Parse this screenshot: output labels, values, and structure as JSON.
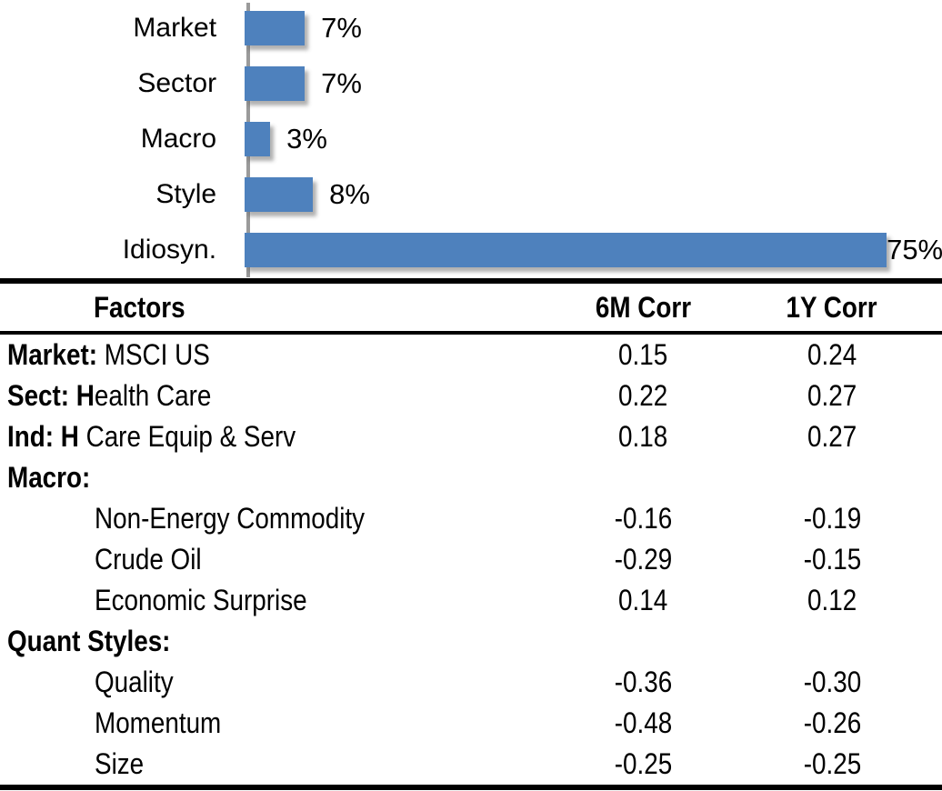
{
  "chart_data": [
    {
      "type": "bar",
      "orientation": "horizontal",
      "title": "",
      "xlabel": "",
      "ylabel": "",
      "categories": [
        "Market",
        "Sector",
        "Macro",
        "Style",
        "Idiosyn."
      ],
      "values": [
        7,
        7,
        3,
        8,
        75
      ],
      "unit": "percent",
      "data_labels": [
        "7%",
        "7%",
        "3%",
        "8%",
        "75%"
      ],
      "xlim": [
        0,
        80
      ],
      "grid": false,
      "legend": "none",
      "bar_color": "#4e81bd",
      "axis_color": "#9a9a9a",
      "label_color": "#000000"
    },
    {
      "type": "table",
      "header": {
        "factors": "Factors",
        "m6": "6M Corr",
        "y1": "1Y Corr"
      },
      "rows": [
        {
          "bold": "Market:",
          "rest": " MSCI US",
          "indent": false,
          "m6": "0.15",
          "y1": "0.24"
        },
        {
          "bold": "Sect: H",
          "rest": "ealth Care",
          "indent": false,
          "m6": "0.22",
          "y1": "0.27"
        },
        {
          "bold": "Ind: H",
          "rest": " Care Equip & Serv",
          "indent": false,
          "m6": "0.18",
          "y1": "0.27"
        },
        {
          "bold": "Macro:",
          "rest": "",
          "indent": false,
          "m6": "",
          "y1": ""
        },
        {
          "bold": "",
          "rest": "Non-Energy Commodity",
          "indent": true,
          "m6": "-0.16",
          "y1": "-0.19"
        },
        {
          "bold": "",
          "rest": "Crude Oil",
          "indent": true,
          "m6": "-0.29",
          "y1": "-0.15"
        },
        {
          "bold": "",
          "rest": "Economic Surprise",
          "indent": true,
          "m6": "0.14",
          "y1": "0.12"
        },
        {
          "bold": "Quant Styles:",
          "rest": "",
          "indent": false,
          "m6": "",
          "y1": ""
        },
        {
          "bold": "",
          "rest": "Quality",
          "indent": true,
          "m6": "-0.36",
          "y1": "-0.30"
        },
        {
          "bold": "",
          "rest": "Momentum",
          "indent": true,
          "m6": "-0.48",
          "y1": "-0.26"
        },
        {
          "bold": "",
          "rest": "Size",
          "indent": true,
          "m6": "-0.25",
          "y1": "-0.25"
        }
      ]
    }
  ]
}
